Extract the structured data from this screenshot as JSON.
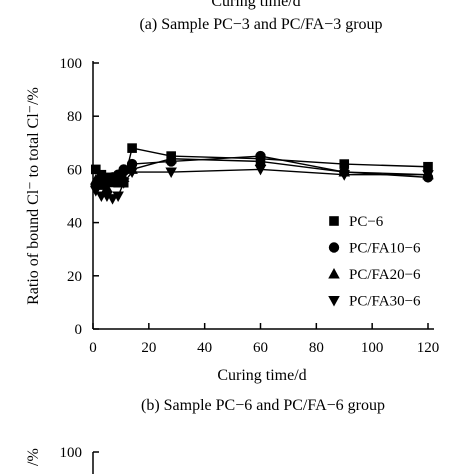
{
  "figure": {
    "top_cut_text": "Curing time/d",
    "caption_top": "(a) Sample PC−3 and PC/FA−3 group",
    "caption_bottom": "(b) Sample PC−6 and PC/FA−6 group"
  },
  "chart_data": {
    "type": "line",
    "xlabel": "Curing time/d",
    "ylabel": "Ratio of bound Cl⁻ to total Cl⁻/%",
    "xlim": [
      0,
      120
    ],
    "ylim": [
      0,
      100
    ],
    "xticks": [
      0,
      20,
      40,
      60,
      80,
      100,
      120
    ],
    "yticks": [
      0,
      20,
      40,
      60,
      80,
      100
    ],
    "legend_position": "bottom-right",
    "series": [
      {
        "name": "PC−6",
        "marker": "square",
        "x": [
          1,
          3,
          5,
          7,
          9,
          11,
          14,
          28,
          60,
          90,
          120
        ],
        "y": [
          60,
          58,
          57,
          56,
          55,
          55,
          68,
          65,
          64,
          62,
          61
        ]
      },
      {
        "name": "PC/FA10−6",
        "marker": "circle",
        "x": [
          1,
          3,
          5,
          7,
          9,
          11,
          14,
          28,
          60,
          90,
          120
        ],
        "y": [
          54,
          55,
          56,
          57,
          58,
          60,
          62,
          63,
          65,
          59,
          57
        ]
      },
      {
        "name": "PC/FA20−6",
        "marker": "triangle-up",
        "x": [
          1,
          3,
          5,
          7,
          9,
          11,
          14,
          28,
          60,
          90,
          120
        ],
        "y": [
          56,
          54,
          53,
          55,
          56,
          57,
          60,
          64,
          63,
          59,
          58
        ]
      },
      {
        "name": "PC/FA30−6",
        "marker": "triangle-down",
        "x": [
          1,
          3,
          5,
          7,
          9,
          11,
          14,
          28,
          60,
          90,
          120
        ],
        "y": [
          52,
          50,
          50,
          49,
          50,
          55,
          59,
          59,
          60,
          58,
          58
        ]
      }
    ]
  },
  "second_chart": {
    "ylabel": "/%",
    "visible_yticks": [
      100
    ]
  }
}
